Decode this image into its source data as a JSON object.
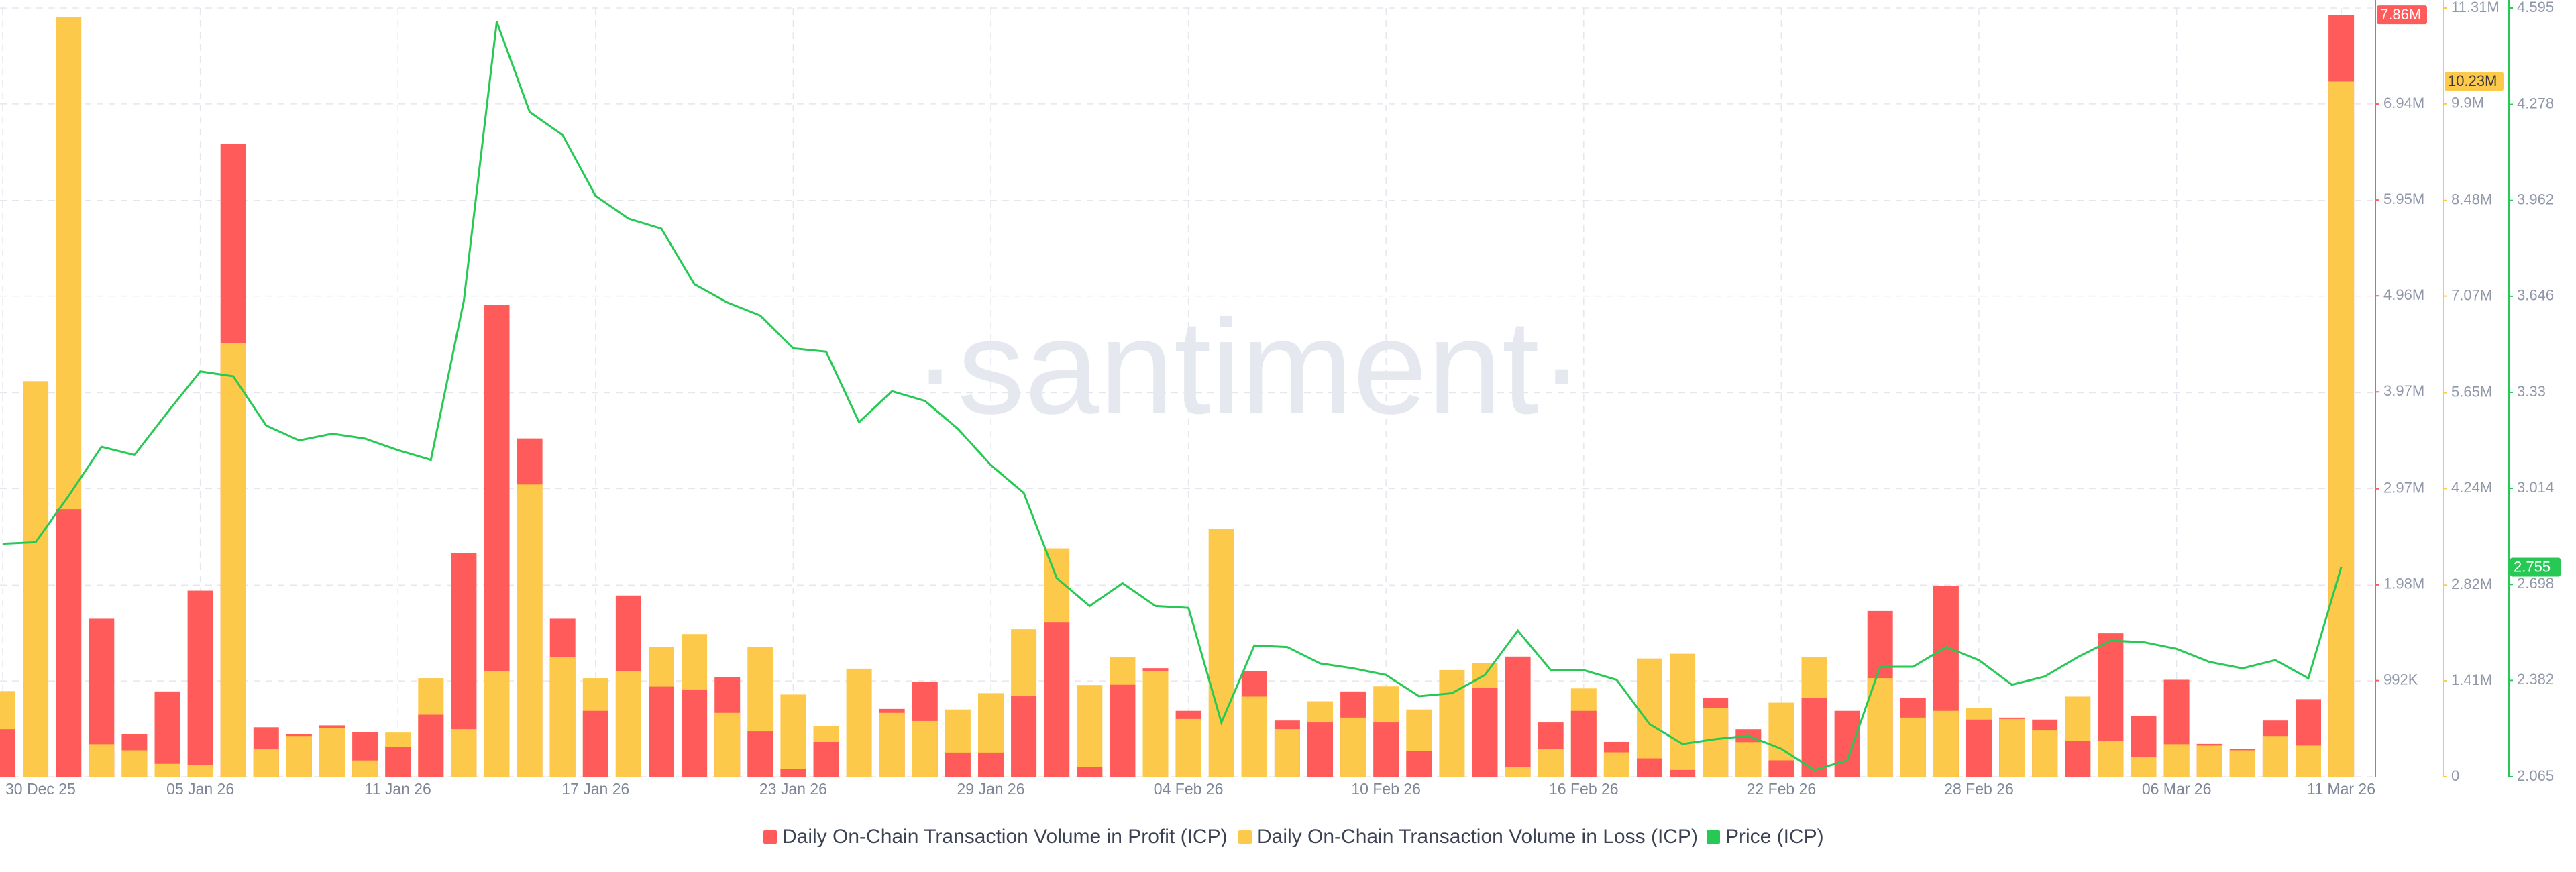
{
  "chart_data": {
    "type": "bar",
    "watermark": "·santiment·",
    "grid": true,
    "legend": "bottom",
    "categories": [
      "30 Dec 25",
      null,
      null,
      null,
      null,
      null,
      "05 Jan 26",
      null,
      null,
      null,
      null,
      null,
      "11 Jan 26",
      null,
      null,
      null,
      null,
      null,
      "17 Jan 26",
      null,
      null,
      null,
      null,
      null,
      "23 Jan 26",
      null,
      null,
      null,
      null,
      null,
      "29 Jan 26",
      null,
      null,
      null,
      null,
      null,
      "04 Feb 26",
      null,
      null,
      null,
      null,
      null,
      "10 Feb 26",
      null,
      null,
      null,
      null,
      null,
      "16 Feb 26",
      null,
      null,
      null,
      null,
      null,
      "22 Feb 26",
      null,
      null,
      null,
      null,
      null,
      "28 Feb 26",
      null,
      null,
      null,
      null,
      null,
      "06 Mar 26",
      null,
      null,
      null,
      null,
      "11 Mar 26"
    ],
    "ylim": [
      0,
      7930000
    ],
    "yticks": [
      {
        "value": 992000,
        "label": "992K"
      },
      {
        "value": 1980000,
        "label": "1.98M"
      },
      {
        "value": 2970000,
        "label": "2.97M"
      },
      {
        "value": 3970000,
        "label": "3.97M"
      },
      {
        "value": 4960000,
        "label": "4.96M"
      },
      {
        "value": 5950000,
        "label": "5.95M"
      },
      {
        "value": 6940000,
        "label": "6.94M"
      }
    ],
    "y2lim": [
      0,
      11310000
    ],
    "y2ticks": [
      0,
      {
        "value": 1410000,
        "label": "1.41M"
      },
      {
        "value": 2820000,
        "label": "2.82M"
      },
      {
        "value": 4240000,
        "label": "4.24M"
      },
      {
        "value": 5650000,
        "label": "5.65M"
      },
      {
        "value": 7070000,
        "label": "7.07M"
      },
      {
        "value": 8480000,
        "label": "8.48M"
      },
      {
        "value": 9900000,
        "label": "9.9M"
      },
      {
        "value": 11310000,
        "label": "11.31M"
      }
    ],
    "y3lim": [
      2.065,
      4.595
    ],
    "y3ticks": [
      2.065,
      2.382,
      2.698,
      3.014,
      3.33,
      3.646,
      3.962,
      4.278,
      4.595
    ],
    "series": [
      {
        "name": "Daily On-Chain Transaction Volume in Profit (ICP)",
        "type": "bar",
        "axis": "y",
        "color": "#ff5b5b",
        "values": [
          490000,
          0,
          2760000,
          1630000,
          440000,
          880000,
          1920000,
          6530000,
          510000,
          440000,
          530000,
          460000,
          310000,
          640000,
          2310000,
          4870000,
          3490000,
          1630000,
          680000,
          1870000,
          930000,
          900000,
          1030000,
          470000,
          80000,
          360000,
          0,
          700000,
          980000,
          250000,
          250000,
          830000,
          1590000,
          100000,
          950000,
          1120000,
          680000,
          0,
          1090000,
          580000,
          560000,
          880000,
          560000,
          270000,
          0,
          920000,
          1240000,
          560000,
          680000,
          360000,
          190000,
          70000,
          810000,
          490000,
          170000,
          810000,
          680000,
          1710000,
          810000,
          1970000,
          590000,
          610000,
          590000,
          370000,
          1480000,
          630000,
          1000000,
          340000,
          290000,
          580000,
          800000,
          7860000
        ],
        "value_labels": [
          null,
          null,
          null,
          null,
          null,
          null,
          null,
          null,
          null,
          null,
          null,
          null,
          null,
          null,
          null,
          null,
          null,
          null,
          null,
          null,
          null,
          null,
          null,
          null,
          null,
          null,
          null,
          null,
          null,
          null,
          null,
          null,
          null,
          null,
          null,
          null,
          null,
          null,
          null,
          null,
          null,
          null,
          null,
          null,
          null,
          null,
          null,
          null,
          null,
          null,
          null,
          null,
          null,
          null,
          null,
          null,
          null,
          null,
          null,
          null,
          null,
          null,
          null,
          null,
          null,
          null,
          null,
          null,
          null,
          null,
          null,
          "7.86M"
        ]
      },
      {
        "name": "Daily On-Chain Transaction Volume in Loss (ICP)",
        "type": "bar",
        "axis": "y2",
        "color": "#fdc94b",
        "values": [
          1260000,
          5820000,
          11180000,
          480000,
          390000,
          190000,
          170000,
          6380000,
          410000,
          600000,
          720000,
          240000,
          650000,
          1450000,
          700000,
          1550000,
          4300000,
          1760000,
          1450000,
          1550000,
          1910000,
          2100000,
          940000,
          1910000,
          1210000,
          750000,
          1590000,
          940000,
          820000,
          990000,
          1230000,
          2170000,
          3360000,
          1350000,
          1760000,
          1550000,
          850000,
          3650000,
          1180000,
          700000,
          1110000,
          870000,
          1330000,
          990000,
          1570000,
          1670000,
          140000,
          410000,
          1300000,
          360000,
          1740000,
          1810000,
          1010000,
          510000,
          1090000,
          1760000,
          0,
          1450000,
          870000,
          970000,
          1010000,
          850000,
          680000,
          1180000,
          530000,
          290000,
          480000,
          460000,
          390000,
          600000,
          460000,
          10230000
        ],
        "value_labels": [
          null,
          null,
          null,
          null,
          null,
          null,
          null,
          null,
          null,
          null,
          null,
          null,
          null,
          null,
          null,
          null,
          null,
          null,
          null,
          null,
          null,
          null,
          null,
          null,
          null,
          null,
          null,
          null,
          null,
          null,
          null,
          null,
          null,
          null,
          null,
          null,
          null,
          null,
          null,
          null,
          null,
          null,
          null,
          null,
          null,
          null,
          null,
          null,
          null,
          null,
          null,
          null,
          null,
          null,
          null,
          null,
          null,
          null,
          null,
          null,
          null,
          null,
          null,
          null,
          null,
          null,
          null,
          null,
          null,
          null,
          null,
          "10.23M"
        ]
      },
      {
        "name": "Price (ICP)",
        "type": "line",
        "axis": "y3",
        "color": "#26c953",
        "values": [
          2.832,
          2.837,
          2.989,
          3.151,
          3.124,
          3.264,
          3.399,
          3.383,
          3.221,
          3.172,
          3.194,
          3.178,
          3.14,
          3.108,
          3.631,
          4.55,
          4.253,
          4.177,
          3.977,
          3.902,
          3.869,
          3.686,
          3.626,
          3.583,
          3.475,
          3.464,
          3.232,
          3.334,
          3.302,
          3.21,
          3.091,
          2.999,
          2.719,
          2.627,
          2.702,
          2.627,
          2.621,
          2.243,
          2.497,
          2.492,
          2.438,
          2.422,
          2.4,
          2.33,
          2.34,
          2.4,
          2.546,
          2.416,
          2.416,
          2.384,
          2.238,
          2.173,
          2.189,
          2.2,
          2.157,
          2.087,
          2.119,
          2.427,
          2.427,
          2.492,
          2.449,
          2.368,
          2.395,
          2.459,
          2.513,
          2.508,
          2.486,
          2.443,
          2.422,
          2.449,
          2.389,
          2.755
        ],
        "value_labels": [
          null,
          null,
          null,
          null,
          null,
          null,
          null,
          null,
          null,
          null,
          null,
          null,
          null,
          null,
          null,
          null,
          null,
          null,
          null,
          null,
          null,
          null,
          null,
          null,
          null,
          null,
          null,
          null,
          null,
          null,
          null,
          null,
          null,
          null,
          null,
          null,
          null,
          null,
          null,
          null,
          null,
          null,
          null,
          null,
          null,
          null,
          null,
          null,
          null,
          null,
          null,
          null,
          null,
          null,
          null,
          null,
          null,
          null,
          null,
          null,
          null,
          null,
          null,
          null,
          null,
          null,
          null,
          null,
          null,
          null,
          null,
          "2.755"
        ]
      }
    ]
  }
}
